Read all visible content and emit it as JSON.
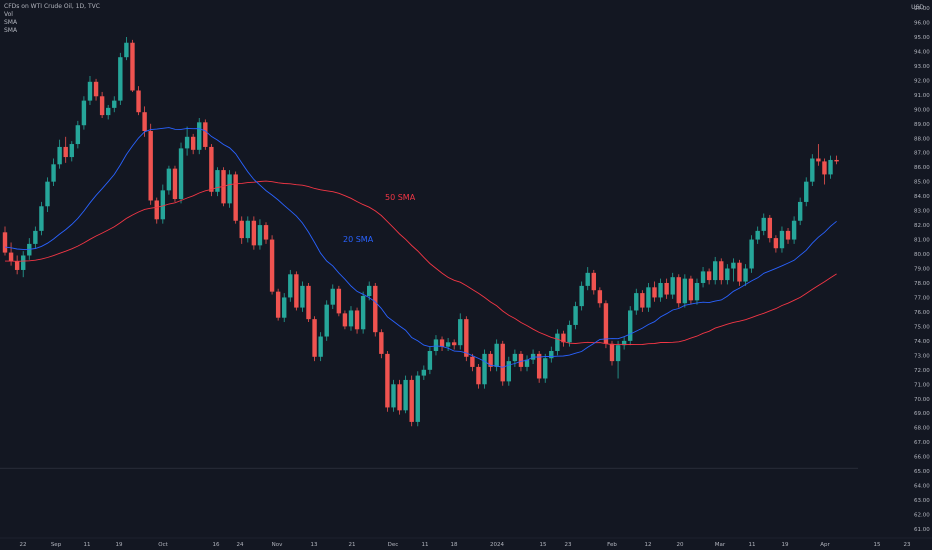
{
  "header": {
    "symbol": "CFDs on WTI Crude Oil, 1D, TVC",
    "indicators": [
      "Vol",
      "SMA",
      "SMA"
    ],
    "currency": "USD"
  },
  "colors": {
    "background": "#131722",
    "up": "#26a69a",
    "down": "#ef5350",
    "sma20": "#2962ff",
    "sma50": "#f23645",
    "grid_text": "#b2b5be"
  },
  "chart_data": {
    "type": "candlestick",
    "yaxis": {
      "min": 61,
      "max": 97,
      "ticks": [
        "61.00",
        "62.00",
        "63.00",
        "64.00",
        "65.00",
        "66.00",
        "67.00",
        "68.00",
        "69.00",
        "70.00",
        "71.00",
        "72.00",
        "73.00",
        "74.00",
        "75.00",
        "76.00",
        "77.00",
        "78.00",
        "79.00",
        "80.00",
        "81.00",
        "82.00",
        "83.00",
        "84.00",
        "85.00",
        "86.00",
        "87.00",
        "88.00",
        "89.00",
        "90.00",
        "91.00",
        "92.00",
        "93.00",
        "94.00",
        "95.00",
        "96.00",
        "97.00"
      ]
    },
    "xaxis": {
      "ticks": [
        "22",
        "Sep",
        "11",
        "19",
        "Oct",
        "16",
        "24",
        "Nov",
        "13",
        "21",
        "Dec",
        "11",
        "18",
        "2024",
        "15",
        "23",
        "Feb",
        "12",
        "20",
        "Mar",
        "11",
        "19",
        "Apr",
        "15",
        "23"
      ]
    },
    "candles": [
      {
        "o": 81.5,
        "h": 81.9,
        "l": 79.9,
        "c": 80.1
      },
      {
        "o": 80.1,
        "h": 80.8,
        "l": 79.2,
        "c": 79.5
      },
      {
        "o": 79.5,
        "h": 79.9,
        "l": 78.6,
        "c": 78.9
      },
      {
        "o": 78.9,
        "h": 80.2,
        "l": 78.4,
        "c": 79.9
      },
      {
        "o": 79.9,
        "h": 81.1,
        "l": 79.6,
        "c": 80.7
      },
      {
        "o": 80.7,
        "h": 81.9,
        "l": 80.4,
        "c": 81.6
      },
      {
        "o": 81.6,
        "h": 83.6,
        "l": 81.3,
        "c": 83.3
      },
      {
        "o": 83.3,
        "h": 85.3,
        "l": 82.9,
        "c": 85.0
      },
      {
        "o": 85.0,
        "h": 86.6,
        "l": 84.7,
        "c": 86.2
      },
      {
        "o": 86.2,
        "h": 87.9,
        "l": 85.9,
        "c": 87.4
      },
      {
        "o": 87.4,
        "h": 88.1,
        "l": 86.3,
        "c": 86.7
      },
      {
        "o": 86.7,
        "h": 87.8,
        "l": 86.4,
        "c": 87.6
      },
      {
        "o": 87.6,
        "h": 89.2,
        "l": 87.3,
        "c": 88.9
      },
      {
        "o": 88.9,
        "h": 90.9,
        "l": 88.6,
        "c": 90.6
      },
      {
        "o": 90.6,
        "h": 92.3,
        "l": 90.3,
        "c": 91.9
      },
      {
        "o": 91.9,
        "h": 92.1,
        "l": 90.6,
        "c": 90.9
      },
      {
        "o": 90.9,
        "h": 91.2,
        "l": 89.4,
        "c": 89.6
      },
      {
        "o": 89.6,
        "h": 90.3,
        "l": 89.3,
        "c": 90.1
      },
      {
        "o": 90.1,
        "h": 90.9,
        "l": 89.8,
        "c": 90.6
      },
      {
        "o": 90.6,
        "h": 93.9,
        "l": 90.3,
        "c": 93.6
      },
      {
        "o": 93.6,
        "h": 95.0,
        "l": 93.4,
        "c": 94.6
      },
      {
        "o": 94.6,
        "h": 94.8,
        "l": 91.2,
        "c": 91.3
      },
      {
        "o": 91.3,
        "h": 91.6,
        "l": 89.6,
        "c": 89.8
      },
      {
        "o": 89.8,
        "h": 90.2,
        "l": 88.1,
        "c": 88.5
      },
      {
        "o": 88.5,
        "h": 89.0,
        "l": 83.4,
        "c": 83.7
      },
      {
        "o": 83.7,
        "h": 83.9,
        "l": 82.1,
        "c": 82.4
      },
      {
        "o": 82.4,
        "h": 84.8,
        "l": 82.1,
        "c": 84.4
      },
      {
        "o": 84.4,
        "h": 86.1,
        "l": 84.1,
        "c": 85.9
      },
      {
        "o": 85.9,
        "h": 86.1,
        "l": 83.6,
        "c": 83.8
      },
      {
        "o": 83.8,
        "h": 87.7,
        "l": 83.5,
        "c": 87.3
      },
      {
        "o": 87.3,
        "h": 88.8,
        "l": 86.8,
        "c": 88.1
      },
      {
        "o": 88.1,
        "h": 88.3,
        "l": 86.9,
        "c": 87.2
      },
      {
        "o": 87.2,
        "h": 89.4,
        "l": 86.9,
        "c": 89.1
      },
      {
        "o": 89.1,
        "h": 89.3,
        "l": 87.2,
        "c": 87.4
      },
      {
        "o": 87.4,
        "h": 87.6,
        "l": 84.0,
        "c": 84.3
      },
      {
        "o": 84.3,
        "h": 86.0,
        "l": 84.0,
        "c": 85.8
      },
      {
        "o": 85.8,
        "h": 86.0,
        "l": 83.3,
        "c": 83.5
      },
      {
        "o": 83.5,
        "h": 85.8,
        "l": 83.2,
        "c": 85.5
      },
      {
        "o": 85.5,
        "h": 85.7,
        "l": 82.1,
        "c": 82.3
      },
      {
        "o": 82.3,
        "h": 82.6,
        "l": 80.7,
        "c": 81.1
      },
      {
        "o": 81.1,
        "h": 82.6,
        "l": 80.8,
        "c": 82.3
      },
      {
        "o": 82.3,
        "h": 82.6,
        "l": 80.3,
        "c": 80.6
      },
      {
        "o": 80.6,
        "h": 82.4,
        "l": 80.3,
        "c": 82.0
      },
      {
        "o": 82.0,
        "h": 82.2,
        "l": 80.7,
        "c": 81.0
      },
      {
        "o": 81.0,
        "h": 81.3,
        "l": 77.2,
        "c": 77.4
      },
      {
        "o": 77.4,
        "h": 77.6,
        "l": 75.4,
        "c": 75.6
      },
      {
        "o": 75.6,
        "h": 77.3,
        "l": 75.3,
        "c": 77.0
      },
      {
        "o": 77.0,
        "h": 78.9,
        "l": 76.7,
        "c": 78.6
      },
      {
        "o": 78.6,
        "h": 78.8,
        "l": 76.1,
        "c": 76.3
      },
      {
        "o": 76.3,
        "h": 78.1,
        "l": 76.0,
        "c": 77.8
      },
      {
        "o": 77.8,
        "h": 78.0,
        "l": 75.3,
        "c": 75.5
      },
      {
        "o": 75.5,
        "h": 75.7,
        "l": 72.6,
        "c": 72.9
      },
      {
        "o": 72.9,
        "h": 74.6,
        "l": 72.6,
        "c": 74.3
      },
      {
        "o": 74.3,
        "h": 76.8,
        "l": 74.0,
        "c": 76.5
      },
      {
        "o": 76.5,
        "h": 77.9,
        "l": 76.2,
        "c": 77.6
      },
      {
        "o": 77.6,
        "h": 77.8,
        "l": 75.7,
        "c": 75.9
      },
      {
        "o": 75.9,
        "h": 76.1,
        "l": 74.8,
        "c": 75.0
      },
      {
        "o": 75.0,
        "h": 76.4,
        "l": 74.7,
        "c": 76.1
      },
      {
        "o": 76.1,
        "h": 76.3,
        "l": 74.5,
        "c": 74.8
      },
      {
        "o": 74.8,
        "h": 77.4,
        "l": 74.5,
        "c": 77.1
      },
      {
        "o": 77.1,
        "h": 78.1,
        "l": 76.8,
        "c": 77.8
      },
      {
        "o": 77.8,
        "h": 78.0,
        "l": 74.3,
        "c": 74.6
      },
      {
        "o": 74.6,
        "h": 74.8,
        "l": 72.8,
        "c": 73.1
      },
      {
        "o": 73.1,
        "h": 73.3,
        "l": 69.1,
        "c": 69.4
      },
      {
        "o": 69.4,
        "h": 71.3,
        "l": 69.1,
        "c": 71.0
      },
      {
        "o": 71.0,
        "h": 71.3,
        "l": 68.9,
        "c": 69.2
      },
      {
        "o": 69.2,
        "h": 71.6,
        "l": 69.0,
        "c": 71.3
      },
      {
        "o": 71.3,
        "h": 71.6,
        "l": 68.1,
        "c": 68.4
      },
      {
        "o": 68.4,
        "h": 71.9,
        "l": 68.1,
        "c": 71.6
      },
      {
        "o": 71.6,
        "h": 72.3,
        "l": 71.3,
        "c": 72.0
      },
      {
        "o": 72.0,
        "h": 73.6,
        "l": 71.7,
        "c": 73.3
      },
      {
        "o": 73.3,
        "h": 74.4,
        "l": 73.0,
        "c": 74.1
      },
      {
        "o": 74.1,
        "h": 74.3,
        "l": 73.3,
        "c": 73.6
      },
      {
        "o": 73.6,
        "h": 74.2,
        "l": 73.3,
        "c": 73.9
      },
      {
        "o": 73.9,
        "h": 74.1,
        "l": 73.4,
        "c": 73.7
      },
      {
        "o": 73.7,
        "h": 75.9,
        "l": 73.4,
        "c": 75.5
      },
      {
        "o": 75.5,
        "h": 75.7,
        "l": 72.6,
        "c": 72.9
      },
      {
        "o": 72.9,
        "h": 73.1,
        "l": 71.9,
        "c": 72.2
      },
      {
        "o": 72.2,
        "h": 72.4,
        "l": 70.7,
        "c": 71.0
      },
      {
        "o": 71.0,
        "h": 73.4,
        "l": 70.7,
        "c": 73.1
      },
      {
        "o": 73.1,
        "h": 73.3,
        "l": 71.9,
        "c": 72.2
      },
      {
        "o": 72.2,
        "h": 74.1,
        "l": 71.9,
        "c": 73.8
      },
      {
        "o": 73.8,
        "h": 74.0,
        "l": 70.9,
        "c": 71.2
      },
      {
        "o": 71.2,
        "h": 72.9,
        "l": 70.9,
        "c": 72.6
      },
      {
        "o": 72.6,
        "h": 73.4,
        "l": 72.2,
        "c": 73.1
      },
      {
        "o": 73.1,
        "h": 73.3,
        "l": 71.9,
        "c": 72.2
      },
      {
        "o": 72.2,
        "h": 73.0,
        "l": 71.9,
        "c": 72.7
      },
      {
        "o": 72.7,
        "h": 73.4,
        "l": 72.4,
        "c": 73.1
      },
      {
        "o": 73.1,
        "h": 73.3,
        "l": 71.1,
        "c": 71.4
      },
      {
        "o": 71.4,
        "h": 73.1,
        "l": 71.1,
        "c": 72.8
      },
      {
        "o": 72.8,
        "h": 73.6,
        "l": 72.5,
        "c": 73.3
      },
      {
        "o": 73.3,
        "h": 74.8,
        "l": 73.0,
        "c": 74.5
      },
      {
        "o": 74.5,
        "h": 74.7,
        "l": 73.6,
        "c": 73.9
      },
      {
        "o": 73.9,
        "h": 75.4,
        "l": 73.6,
        "c": 75.1
      },
      {
        "o": 75.1,
        "h": 76.7,
        "l": 74.8,
        "c": 76.4
      },
      {
        "o": 76.4,
        "h": 78.1,
        "l": 76.1,
        "c": 77.8
      },
      {
        "o": 77.8,
        "h": 79.1,
        "l": 77.5,
        "c": 78.7
      },
      {
        "o": 78.7,
        "h": 78.9,
        "l": 77.2,
        "c": 77.5
      },
      {
        "o": 77.5,
        "h": 77.7,
        "l": 76.3,
        "c": 76.6
      },
      {
        "o": 76.6,
        "h": 76.8,
        "l": 73.5,
        "c": 73.8
      },
      {
        "o": 73.8,
        "h": 74.0,
        "l": 72.3,
        "c": 72.6
      },
      {
        "o": 72.6,
        "h": 74.0,
        "l": 71.4,
        "c": 73.7
      },
      {
        "o": 73.7,
        "h": 74.3,
        "l": 73.4,
        "c": 74.0
      },
      {
        "o": 74.0,
        "h": 76.4,
        "l": 73.7,
        "c": 76.1
      },
      {
        "o": 76.1,
        "h": 77.6,
        "l": 75.8,
        "c": 77.3
      },
      {
        "o": 77.3,
        "h": 77.5,
        "l": 76.0,
        "c": 76.3
      },
      {
        "o": 76.3,
        "h": 78.0,
        "l": 76.0,
        "c": 77.7
      },
      {
        "o": 77.7,
        "h": 78.1,
        "l": 76.7,
        "c": 77.0
      },
      {
        "o": 77.0,
        "h": 78.3,
        "l": 76.7,
        "c": 78.0
      },
      {
        "o": 78.0,
        "h": 78.3,
        "l": 76.9,
        "c": 77.2
      },
      {
        "o": 77.2,
        "h": 78.7,
        "l": 76.9,
        "c": 78.4
      },
      {
        "o": 78.4,
        "h": 78.6,
        "l": 76.3,
        "c": 76.6
      },
      {
        "o": 76.6,
        "h": 78.6,
        "l": 76.3,
        "c": 78.3
      },
      {
        "o": 78.3,
        "h": 78.5,
        "l": 76.5,
        "c": 76.8
      },
      {
        "o": 76.8,
        "h": 78.3,
        "l": 76.5,
        "c": 78.0
      },
      {
        "o": 78.0,
        "h": 79.1,
        "l": 77.7,
        "c": 78.8
      },
      {
        "o": 78.8,
        "h": 79.0,
        "l": 77.9,
        "c": 78.2
      },
      {
        "o": 78.2,
        "h": 79.8,
        "l": 77.9,
        "c": 79.5
      },
      {
        "o": 79.5,
        "h": 79.7,
        "l": 77.9,
        "c": 78.2
      },
      {
        "o": 78.2,
        "h": 79.3,
        "l": 77.9,
        "c": 79.0
      },
      {
        "o": 79.0,
        "h": 79.7,
        "l": 78.1,
        "c": 79.4
      },
      {
        "o": 79.4,
        "h": 79.6,
        "l": 77.8,
        "c": 78.1
      },
      {
        "o": 78.1,
        "h": 79.3,
        "l": 77.8,
        "c": 79.0
      },
      {
        "o": 79.0,
        "h": 81.3,
        "l": 78.7,
        "c": 81.0
      },
      {
        "o": 81.0,
        "h": 81.9,
        "l": 80.7,
        "c": 81.6
      },
      {
        "o": 81.6,
        "h": 82.8,
        "l": 81.3,
        "c": 82.5
      },
      {
        "o": 82.5,
        "h": 82.7,
        "l": 80.8,
        "c": 81.1
      },
      {
        "o": 81.1,
        "h": 81.3,
        "l": 80.1,
        "c": 80.4
      },
      {
        "o": 80.4,
        "h": 81.9,
        "l": 80.1,
        "c": 81.6
      },
      {
        "o": 81.6,
        "h": 81.8,
        "l": 80.7,
        "c": 81.0
      },
      {
        "o": 81.0,
        "h": 82.6,
        "l": 80.7,
        "c": 82.3
      },
      {
        "o": 82.3,
        "h": 83.9,
        "l": 82.0,
        "c": 83.6
      },
      {
        "o": 83.6,
        "h": 85.3,
        "l": 83.3,
        "c": 85.0
      },
      {
        "o": 85.0,
        "h": 86.9,
        "l": 84.7,
        "c": 86.6
      },
      {
        "o": 86.6,
        "h": 87.6,
        "l": 86.1,
        "c": 86.4
      },
      {
        "o": 86.4,
        "h": 86.6,
        "l": 84.8,
        "c": 85.5
      },
      {
        "o": 85.5,
        "h": 86.8,
        "l": 85.2,
        "c": 86.5
      },
      {
        "o": 86.5,
        "h": 86.8,
        "l": 86.2,
        "c": 86.4
      }
    ],
    "annotations": [
      {
        "text": "50 SMA",
        "color": "#f23645"
      },
      {
        "text": "20 SMA",
        "color": "#2962ff"
      }
    ],
    "hline": 65.2
  }
}
